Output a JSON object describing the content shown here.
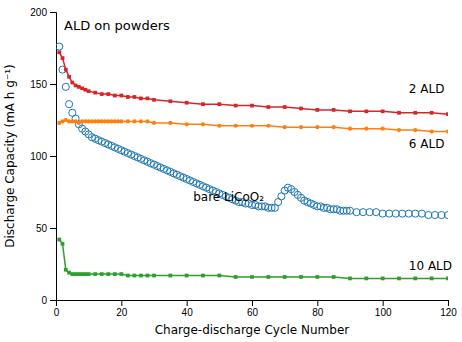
{
  "chart_data": {
    "type": "line",
    "title": "ALD on powders",
    "x_label": "Charge-discharge Cycle Number",
    "y_label": "Discharge Capacity (mA h g⁻¹)",
    "xlim": [
      0,
      120
    ],
    "ylim": [
      0,
      200
    ],
    "xticks": [
      0,
      20,
      40,
      60,
      80,
      100,
      120
    ],
    "yticks": [
      0,
      50,
      100,
      150,
      200
    ],
    "grid": false,
    "series": [
      {
        "marker": "circle",
        "line_style": "none",
        "x": [
          1,
          2,
          3,
          4,
          5,
          6,
          7,
          8,
          9,
          10,
          11,
          12,
          13,
          14,
          15,
          16,
          17,
          18,
          19,
          20,
          21,
          22,
          23,
          24,
          25,
          26,
          27,
          28,
          29,
          30,
          31,
          32,
          33,
          34,
          35,
          36,
          37,
          38,
          39,
          40,
          41,
          42,
          43,
          44,
          45,
          46,
          47,
          48,
          49,
          50,
          51,
          52,
          53,
          54,
          55,
          56,
          57,
          58,
          59,
          60,
          61,
          62,
          63,
          64,
          65,
          66,
          67,
          68,
          69,
          70,
          71,
          72,
          73,
          74,
          75,
          76,
          77,
          78,
          79,
          80,
          81,
          82,
          83,
          84,
          85,
          86,
          87,
          88,
          89,
          90,
          92,
          94,
          96,
          98,
          100,
          102,
          104,
          106,
          108,
          110,
          112,
          114,
          116,
          118,
          120
        ],
        "values": [
          176,
          160,
          148,
          136,
          130,
          126,
          122,
          119,
          117,
          115,
          113,
          112,
          111,
          110,
          109,
          108,
          107,
          106,
          105,
          104,
          103,
          102,
          101,
          100,
          99,
          98,
          97,
          96,
          95,
          94,
          93,
          92,
          91,
          90,
          89,
          88,
          87,
          86,
          85,
          84,
          83,
          82,
          81,
          80,
          79,
          78,
          77,
          76,
          75,
          74,
          73,
          72,
          71,
          70,
          69,
          68,
          68,
          67,
          67,
          66,
          66,
          65,
          65,
          65,
          64,
          64,
          64,
          68,
          72,
          76,
          78,
          77,
          75,
          73,
          71,
          69,
          68,
          67,
          66,
          65,
          65,
          64,
          64,
          63,
          63,
          63,
          62,
          62,
          62,
          62,
          61,
          61,
          61,
          61,
          60,
          60,
          60,
          60,
          60,
          60,
          60,
          59,
          59,
          59,
          59
        ]
      },
      {
        "marker": "circle",
        "line_style": "solid",
        "x": [
          1,
          2,
          3,
          4,
          5,
          6,
          7,
          8,
          9,
          10,
          11,
          12,
          13,
          14,
          15,
          16,
          17,
          18,
          19,
          20,
          22,
          24,
          26,
          28,
          30,
          35,
          40,
          45,
          50,
          55,
          60,
          65,
          70,
          75,
          80,
          85,
          90,
          95,
          100,
          105,
          110,
          115,
          120
        ],
        "values": [
          123,
          124,
          125,
          124,
          124,
          124,
          123,
          124,
          124,
          124,
          124,
          124,
          124,
          124,
          124,
          124,
          124,
          124,
          124,
          124,
          124,
          124,
          124,
          124,
          123,
          123,
          122,
          122,
          121,
          121,
          121,
          121,
          120,
          120,
          120,
          120,
          119,
          119,
          119,
          118,
          118,
          117,
          117
        ]
      },
      {
        "marker": "square",
        "line_style": "solid",
        "x": [
          1,
          2,
          3,
          4,
          5,
          6,
          7,
          8,
          9,
          10,
          12,
          14,
          16,
          18,
          20,
          22,
          24,
          26,
          28,
          30,
          35,
          40,
          45,
          50,
          55,
          60,
          65,
          70,
          75,
          80,
          85,
          90,
          95,
          100,
          105,
          110,
          115,
          120
        ],
        "values": [
          42,
          39,
          21,
          19,
          18,
          18,
          18,
          18,
          18,
          18,
          18,
          18,
          18,
          18,
          18,
          17,
          17,
          17,
          17,
          17,
          17,
          17,
          17,
          17,
          16,
          16,
          16,
          16,
          16,
          16,
          16,
          15,
          15,
          15,
          15,
          15,
          15,
          15
        ]
      },
      {
        "marker": "square",
        "line_style": "solid",
        "x": [
          1,
          2,
          3,
          4,
          5,
          6,
          7,
          8,
          9,
          10,
          12,
          14,
          16,
          18,
          20,
          22,
          24,
          26,
          28,
          30,
          35,
          40,
          45,
          50,
          55,
          60,
          65,
          70,
          75,
          80,
          85,
          90,
          95,
          100,
          105,
          110,
          115,
          120
        ],
        "values": [
          172,
          168,
          160,
          155,
          151,
          149,
          148,
          147,
          146,
          145,
          144,
          143,
          143,
          142,
          142,
          141,
          141,
          140,
          140,
          139,
          138,
          137,
          136,
          136,
          135,
          135,
          134,
          134,
          133,
          132,
          132,
          131,
          131,
          131,
          130,
          130,
          130,
          129
        ]
      }
    ],
    "annotations": [
      {
        "text": "2 ALD",
        "x": 108,
        "y": 146
      },
      {
        "text": "6 ALD",
        "x": 108,
        "y": 108
      },
      {
        "text": "bare LiCoO₂",
        "x": 42,
        "y": 71
      },
      {
        "text": "10 ALD",
        "x": 108,
        "y": 23
      }
    ]
  }
}
